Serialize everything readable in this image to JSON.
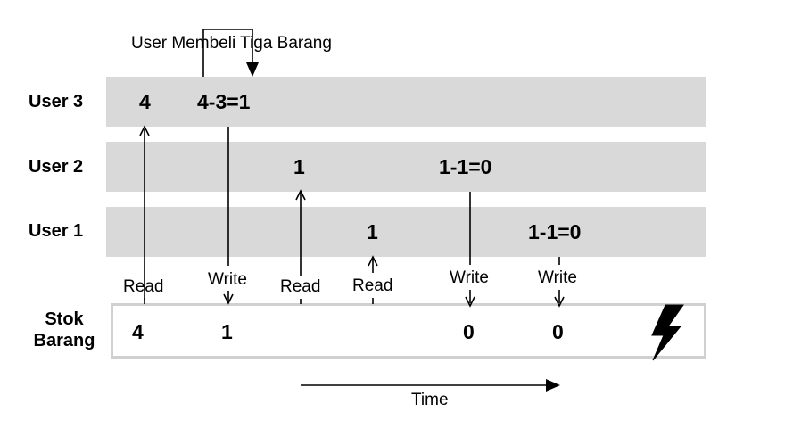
{
  "annotation": "User Membeli Tiga Barang",
  "rows": {
    "user3": {
      "label": "User 3",
      "values": [
        "4",
        "4-3=1"
      ]
    },
    "user2": {
      "label": "User 2",
      "values": [
        "1",
        "1-1=0"
      ]
    },
    "user1": {
      "label": "User 1",
      "values": [
        "1",
        "1-1=0"
      ]
    }
  },
  "operations": [
    "Read",
    "Write",
    "Read",
    "Read",
    "Write",
    "Write"
  ],
  "stock": {
    "label_line1": "Stok",
    "label_line2": "Barang",
    "values": [
      "4",
      "1",
      "0",
      "0"
    ]
  },
  "time_label": "Time",
  "icons": {
    "conflict": "lightning-bolt-icon"
  },
  "colors": {
    "band": "#d9d9d9",
    "box_border": "#d0d0d0",
    "ink": "#000000"
  }
}
